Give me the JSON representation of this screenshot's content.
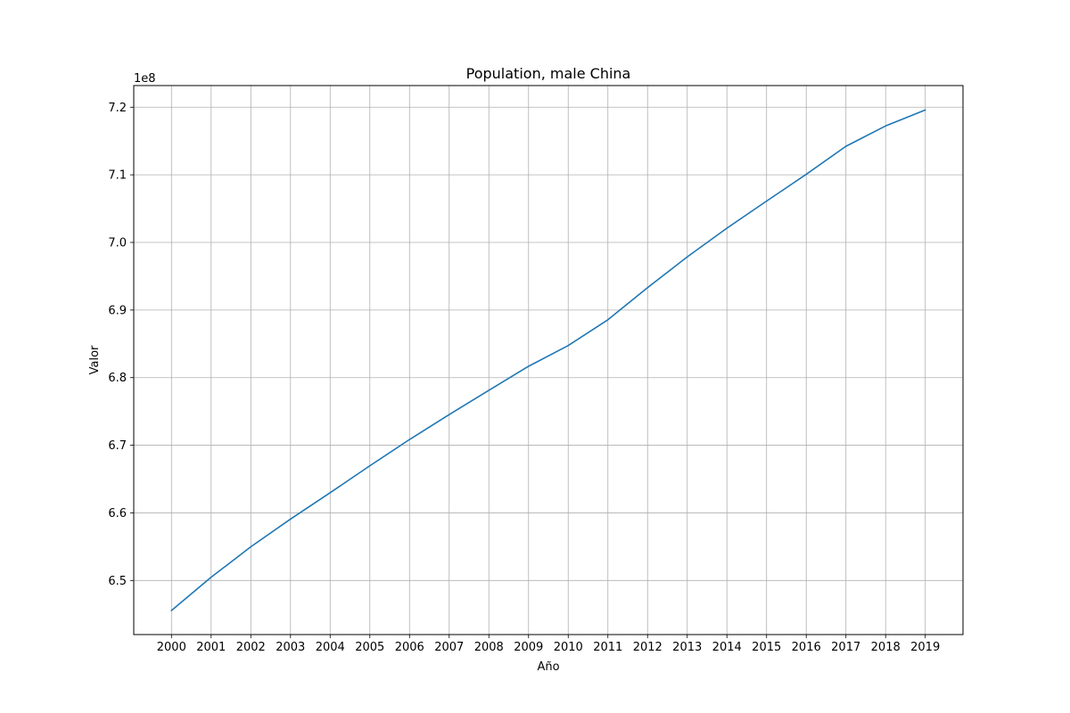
{
  "chart_data": {
    "type": "line",
    "title": "Population, male China",
    "xlabel": "Año",
    "ylabel": "Valor",
    "offset_label": "1e8",
    "x": [
      "2000",
      "2001",
      "2002",
      "2003",
      "2004",
      "2005",
      "2006",
      "2007",
      "2008",
      "2009",
      "2010",
      "2011",
      "2012",
      "2013",
      "2014",
      "2015",
      "2016",
      "2017",
      "2018",
      "2019"
    ],
    "series": [
      {
        "color": "#1f77b4",
        "values": [
          645560000,
          650480000,
          654980000,
          659080000,
          662980000,
          666960000,
          670850000,
          674540000,
          678120000,
          681680000,
          684750000,
          688560000,
          693310000,
          697860000,
          702110000,
          706110000,
          710080000,
          714220000,
          717230000,
          719590000
        ]
      }
    ],
    "ylim": [
      642000000,
      723200000
    ],
    "yticks": [
      650000000,
      660000000,
      670000000,
      680000000,
      690000000,
      700000000,
      710000000,
      720000000
    ],
    "ytick_labels": [
      "6.5",
      "6.6",
      "6.7",
      "6.8",
      "6.9",
      "7.0",
      "7.1",
      "7.2"
    ],
    "grid": true,
    "grid_color": "#b0b0b0"
  }
}
